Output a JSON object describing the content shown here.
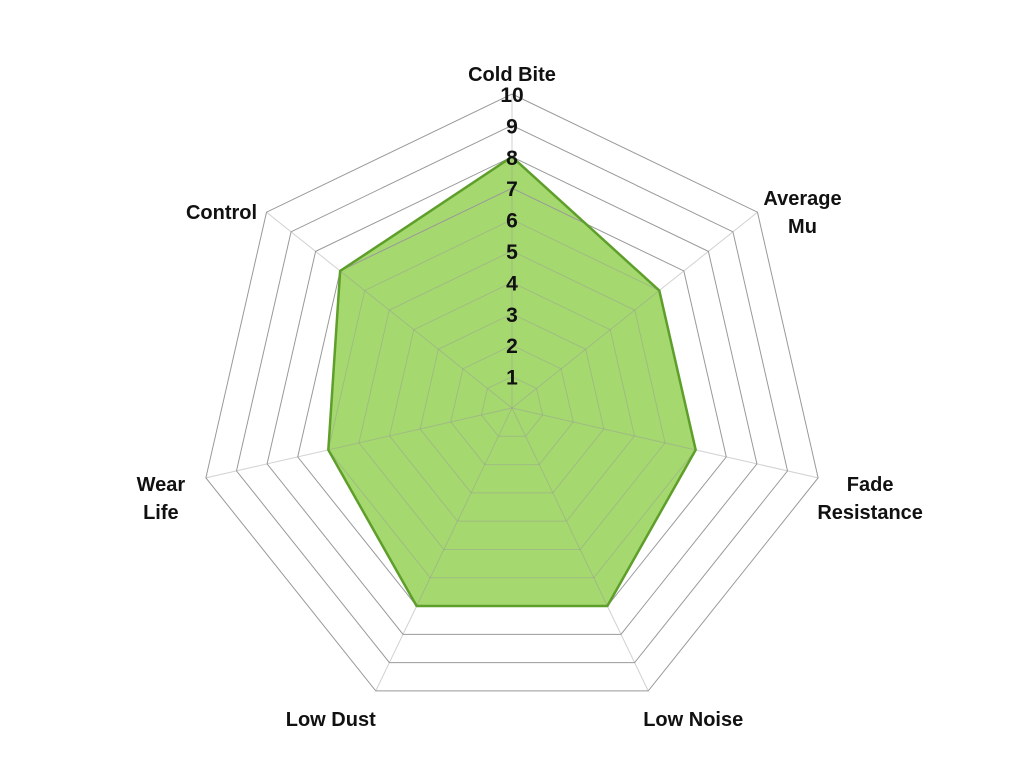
{
  "chart_data": {
    "type": "radar",
    "title": "",
    "axes": [
      "Cold Bite",
      "Average Mu",
      "Fade Resistance",
      "Low Noise",
      "Low Dust",
      "Wear Life",
      "Control"
    ],
    "values": [
      8,
      6,
      6,
      7,
      7,
      6,
      7
    ],
    "range": [
      0,
      10
    ],
    "tick_labels": [
      "1",
      "2",
      "3",
      "4",
      "5",
      "6",
      "7",
      "8",
      "9",
      "10"
    ],
    "grid": true,
    "fill_color": "#a5d96f",
    "line_color": "#5e9e2a",
    "grid_color": "#999999"
  }
}
